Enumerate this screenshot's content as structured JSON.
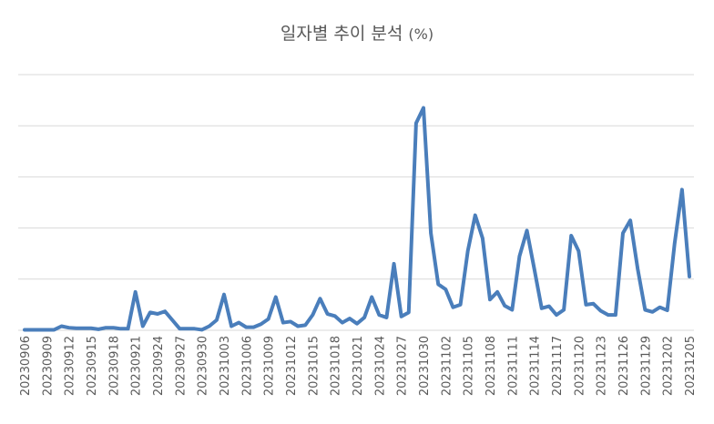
{
  "chart_data": {
    "type": "line",
    "title": "일자별 추이 분석",
    "title_unit": "(%)",
    "xlabel": "",
    "ylabel": "",
    "y_tick_labels_visible": false,
    "ylim": [
      0,
      50
    ],
    "grid": true,
    "legend": "none",
    "line_color": "#4a7ebb",
    "tick_labels": [
      "20230906",
      "20230909",
      "20230912",
      "20230915",
      "20230918",
      "20230921",
      "20230924",
      "20230927",
      "20230930",
      "20231003",
      "20231006",
      "20231009",
      "20231012",
      "20231015",
      "20231018",
      "20231021",
      "20231024",
      "20231027",
      "20231030",
      "20231102",
      "20231105",
      "20231108",
      "20231111",
      "20231114",
      "20231117",
      "20231120",
      "20231123",
      "20231126",
      "20231129",
      "20231202",
      "20231205"
    ],
    "series": [
      {
        "values": [
          0.1,
          0.1,
          0.1,
          0.1,
          0.1,
          0.8,
          0.5,
          0.4,
          0.4,
          0.4,
          0.2,
          0.5,
          0.5,
          0.3,
          0.3,
          7.5,
          0.8,
          3.5,
          3.2,
          3.7,
          2,
          0.3,
          0.3,
          0.3,
          0.1,
          0.8,
          2,
          7,
          0.8,
          1.5,
          0.6,
          0.6,
          1.2,
          2.2,
          6.5,
          1.5,
          1.7,
          0.8,
          1,
          3,
          6.2,
          3.2,
          2.8,
          1.5,
          2.3,
          1.3,
          2.5,
          6.5,
          3,
          2.5,
          13,
          2.7,
          3.5,
          40.5,
          43.5,
          19,
          9,
          8,
          4.5,
          5,
          15.5,
          22.5,
          18,
          6,
          7.5,
          4.8,
          4,
          14.5,
          19.5,
          12,
          4.3,
          4.7,
          3,
          4,
          18.5,
          15.5,
          5,
          5.2,
          3.8,
          3,
          3,
          19,
          21.5,
          12,
          4,
          3.6,
          4.5,
          3.9,
          17,
          27.5,
          10.5
        ]
      }
    ]
  }
}
